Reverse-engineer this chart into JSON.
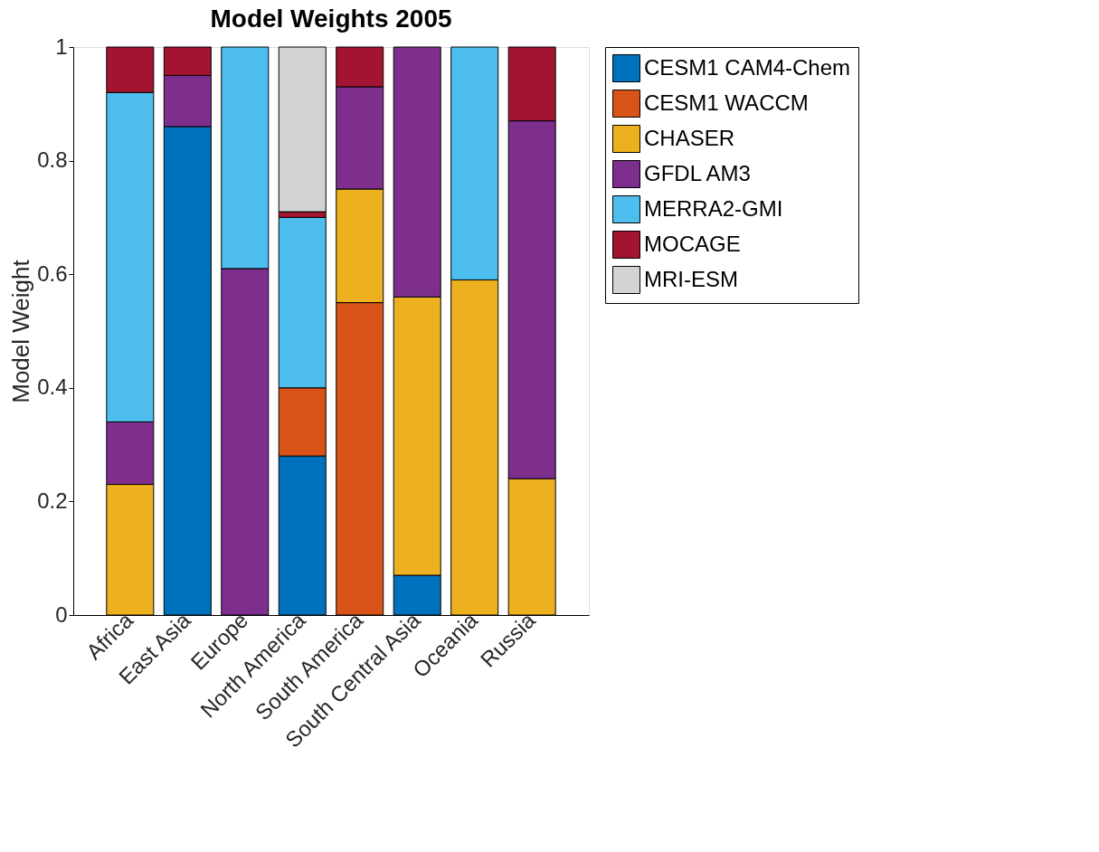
{
  "chart_data": {
    "type": "bar",
    "stacked": true,
    "title": "Model Weights 2005",
    "ylabel": "Model Weight",
    "categories": [
      "Africa",
      "East Asia",
      "Europe",
      "North America",
      "South America",
      "South Central Asia",
      "Oceania",
      "Russia"
    ],
    "series": [
      {
        "name": "CESM1 CAM4-Chem",
        "color": "#0072bd",
        "values": [
          null,
          0.86,
          null,
          0.28,
          null,
          0.07,
          null,
          null
        ]
      },
      {
        "name": "CESM1 WACCM",
        "color": "#d95319",
        "values": [
          null,
          null,
          null,
          0.12,
          0.55,
          null,
          null,
          null
        ]
      },
      {
        "name": "CHASER",
        "color": "#edb120",
        "values": [
          0.23,
          null,
          null,
          null,
          0.2,
          0.49,
          0.59,
          0.24
        ]
      },
      {
        "name": "GFDL AM3",
        "color": "#7e2f8e",
        "values": [
          0.11,
          0.09,
          0.61,
          null,
          0.18,
          0.44,
          null,
          0.63
        ]
      },
      {
        "name": "MERRA2-GMI",
        "color": "#4dbeee",
        "values": [
          0.58,
          null,
          0.39,
          0.3,
          null,
          null,
          0.41,
          null
        ]
      },
      {
        "name": "MOCAGE",
        "color": "#a2142f",
        "values": [
          0.08,
          0.05,
          null,
          0.01,
          0.07,
          null,
          null,
          0.13
        ]
      },
      {
        "name": "MRI-ESM",
        "color": "#d3d3d3",
        "values": [
          null,
          null,
          null,
          0.29,
          null,
          null,
          null,
          null
        ]
      }
    ],
    "ylim": [
      0,
      1
    ],
    "yticks": [
      0,
      0.2,
      0.4,
      0.6,
      0.8,
      1
    ],
    "legend": "right",
    "grid": false
  }
}
